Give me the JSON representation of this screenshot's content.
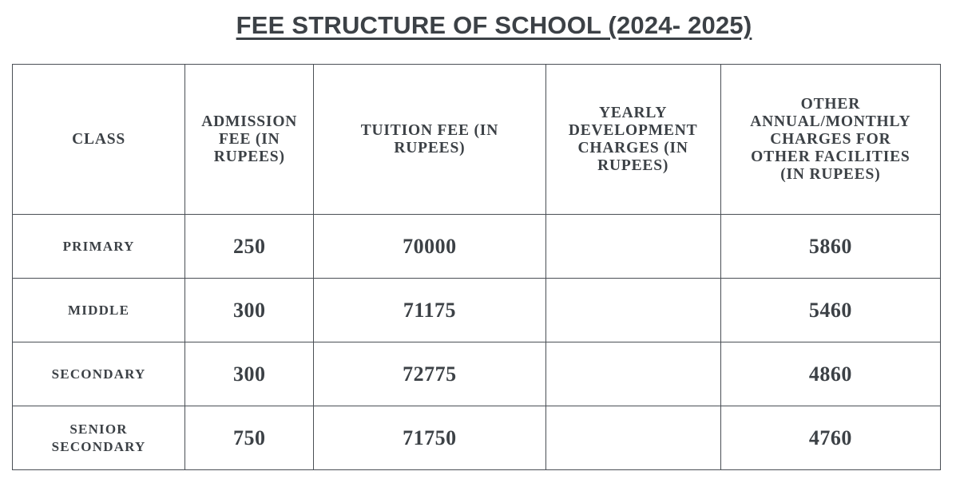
{
  "document": {
    "title": "FEE STRUCTURE OF SCHOOL (2024- 2025)"
  },
  "table": {
    "headers": [
      [
        "CLASS"
      ],
      [
        "ADMISSION",
        "FEE (IN",
        "RUPEES)"
      ],
      [
        "TUITION FEE (IN",
        "RUPEES)"
      ],
      [
        "YEARLY",
        "DEVELOPMENT",
        "CHARGES (IN",
        "RUPEES)"
      ],
      [
        "OTHER",
        "ANNUAL/MONTHLY",
        "CHARGES FOR",
        "OTHER FACILITIES",
        "(IN RUPEES)"
      ]
    ],
    "rows": [
      {
        "class_lines": [
          "PRIMARY"
        ],
        "admission_fee": "250",
        "tuition_fee": "70000",
        "development_charges": "",
        "other_charges": "5860"
      },
      {
        "class_lines": [
          "MIDDLE"
        ],
        "admission_fee": "300",
        "tuition_fee": "71175",
        "development_charges": "",
        "other_charges": "5460"
      },
      {
        "class_lines": [
          "SECONDARY"
        ],
        "admission_fee": "300",
        "tuition_fee": "72775",
        "development_charges": "",
        "other_charges": "4860"
      },
      {
        "class_lines": [
          "SENIOR",
          "SECONDARY"
        ],
        "admission_fee": "750",
        "tuition_fee": "71750",
        "development_charges": "",
        "other_charges": "4760"
      }
    ]
  }
}
